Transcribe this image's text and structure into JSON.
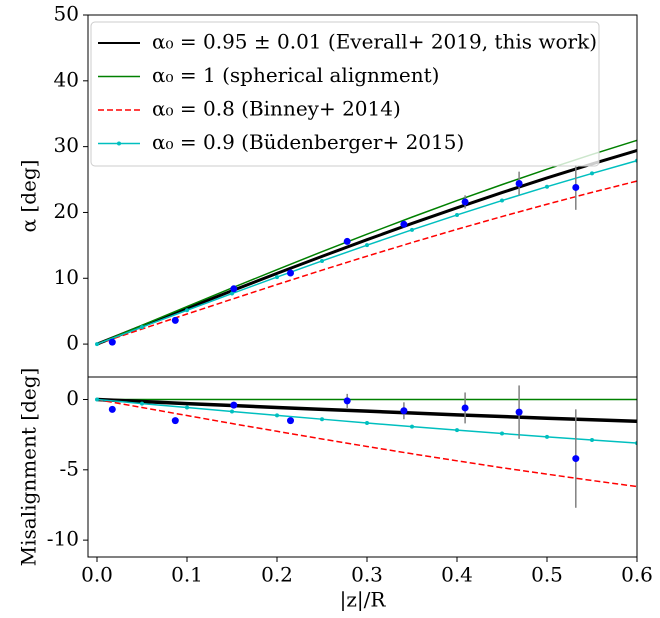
{
  "chart_data": [
    {
      "type": "line",
      "ylabel": "α [deg]",
      "xlim": [
        -0.01,
        0.6
      ],
      "ylim": [
        -5,
        50
      ],
      "yticks": [
        0,
        10,
        20,
        30,
        40,
        50
      ],
      "legend": "upper left",
      "x": [
        0,
        0.05,
        0.1,
        0.15,
        0.2,
        0.25,
        0.3,
        0.35,
        0.4,
        0.45,
        0.5,
        0.55,
        0.6
      ],
      "series": [
        {
          "name": "α₀ = 0.95 ± 0.01 (Everall+ 2019, this work)",
          "color": "#000000",
          "width": 3,
          "values": [
            0,
            2.72,
            5.43,
            8.1,
            10.74,
            13.33,
            15.86,
            18.33,
            20.71,
            23.02,
            25.24,
            27.37,
            29.42
          ]
        },
        {
          "name": "α₀ = 1 (spherical alignment)",
          "color": "#008000",
          "width": 1.5,
          "values": [
            0,
            2.86,
            5.71,
            8.53,
            11.31,
            14.04,
            16.7,
            19.29,
            21.8,
            24.23,
            26.57,
            28.81,
            30.96
          ]
        },
        {
          "name": "α₀ = 0.8 (Binney+ 2014)",
          "color": "#ff0000",
          "width": 1.5,
          "linestyle": "dashed",
          "values": [
            0,
            2.29,
            4.57,
            6.82,
            9.05,
            11.23,
            13.36,
            15.43,
            17.44,
            19.38,
            21.25,
            23.05,
            24.77
          ]
        },
        {
          "name": "α₀ = 0.9 (Büdenberger+ 2015)",
          "color": "#00bfbf",
          "width": 1.5,
          "marker": true,
          "values": [
            0,
            2.58,
            5.14,
            7.68,
            10.18,
            12.63,
            15.03,
            17.36,
            19.62,
            21.81,
            23.91,
            25.93,
            27.87
          ]
        }
      ],
      "points": {
        "color": "#0000ff",
        "error_color": "#808080",
        "x": [
          0.017,
          0.087,
          0.152,
          0.215,
          0.278,
          0.341,
          0.409,
          0.469,
          0.532
        ],
        "values": [
          0.3,
          3.6,
          8.4,
          10.8,
          15.6,
          18.2,
          21.6,
          24.4,
          23.8
        ],
        "errors": [
          0.3,
          0.3,
          0.3,
          0.3,
          0.4,
          0.5,
          1.0,
          1.8,
          3.4
        ]
      }
    },
    {
      "type": "line",
      "ylabel": "Misalignment [deg]",
      "xlabel": "|z|/R",
      "xlim": [
        -0.01,
        0.6
      ],
      "ylim": [
        -11.2,
        1.6
      ],
      "yticks": [
        0,
        -5,
        -10
      ],
      "xticks": [
        {
          "value": 0,
          "label": "0.0"
        },
        0.1,
        0.2,
        0.3,
        0.4,
        0.5,
        0.6
      ],
      "x": [
        0,
        0.05,
        0.1,
        0.15,
        0.2,
        0.25,
        0.3,
        0.35,
        0.4,
        0.45,
        0.5,
        0.55,
        0.6
      ],
      "series": [
        {
          "color": "#008000",
          "width": 1.5,
          "values": [
            0,
            0,
            0,
            0,
            0,
            0,
            0,
            0,
            0,
            0,
            0,
            0,
            0
          ]
        },
        {
          "color": "#000000",
          "width": 3.5,
          "values": [
            0,
            -0.14,
            -0.29,
            -0.43,
            -0.57,
            -0.7,
            -0.83,
            -0.96,
            -1.09,
            -1.21,
            -1.33,
            -1.44,
            -1.55
          ]
        },
        {
          "color": "#ff0000",
          "width": 1.5,
          "linestyle": "dashed",
          "values": [
            0,
            -0.57,
            -1.14,
            -1.71,
            -2.26,
            -2.81,
            -3.34,
            -3.86,
            -4.36,
            -4.85,
            -5.31,
            -5.76,
            -6.19
          ]
        },
        {
          "color": "#00bfbf",
          "width": 1.5,
          "marker": true,
          "values": [
            0,
            -0.29,
            -0.57,
            -0.85,
            -1.13,
            -1.4,
            -1.67,
            -1.93,
            -2.18,
            -2.42,
            -2.66,
            -2.88,
            -3.1
          ]
        }
      ],
      "points": {
        "color": "#0000ff",
        "error_color": "#808080",
        "x": [
          0.017,
          0.087,
          0.152,
          0.215,
          0.278,
          0.341,
          0.409,
          0.469,
          0.532
        ],
        "values": [
          -0.7,
          -1.5,
          -0.4,
          -1.5,
          -0.1,
          -0.8,
          -0.6,
          -0.9,
          -4.2
        ],
        "errors": [
          0.1,
          0.1,
          0.1,
          0.1,
          0.5,
          0.6,
          1.1,
          1.9,
          3.5
        ]
      }
    }
  ]
}
